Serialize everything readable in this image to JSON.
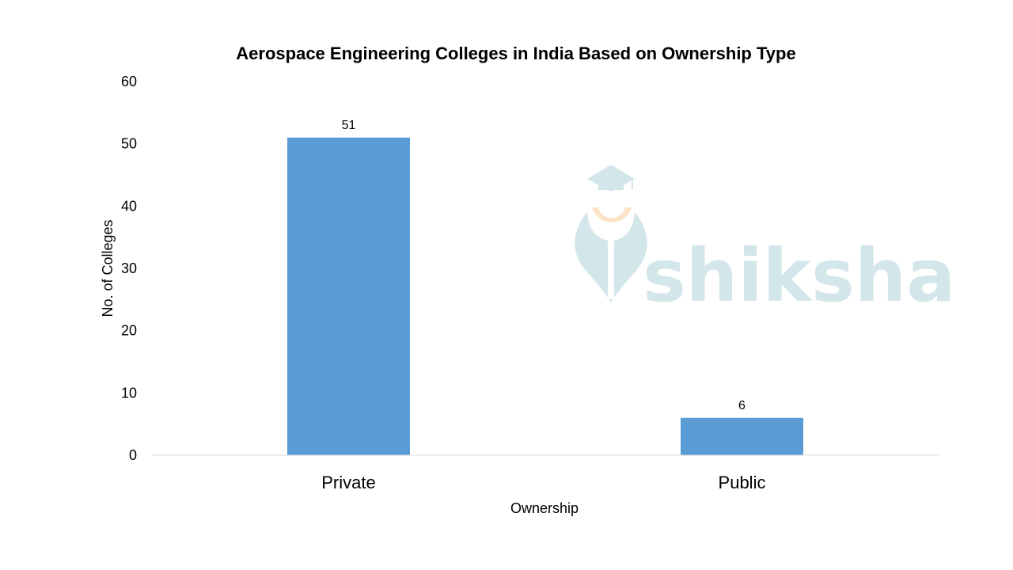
{
  "colors": {
    "bar": "#5b9bd5",
    "axis_line": "#d9d9d9",
    "watermark_teal": "#d3e6e9",
    "watermark_orange": "#fbe3c6"
  },
  "watermark": {
    "text": "shiksha",
    "icon": "graduation-cap-pen-logo"
  },
  "chart_data": {
    "type": "bar",
    "title": "Aerospace Engineering Colleges in India Based on Ownership Type",
    "xlabel": "Ownership",
    "ylabel": "No. of Colleges",
    "categories": [
      "Private",
      "Public"
    ],
    "values": [
      51,
      6
    ],
    "data_labels": [
      "51",
      "6"
    ],
    "ylim": [
      0,
      60
    ],
    "yticks": [
      0,
      10,
      20,
      30,
      40,
      50,
      60
    ],
    "grid": false,
    "legend": "none"
  }
}
